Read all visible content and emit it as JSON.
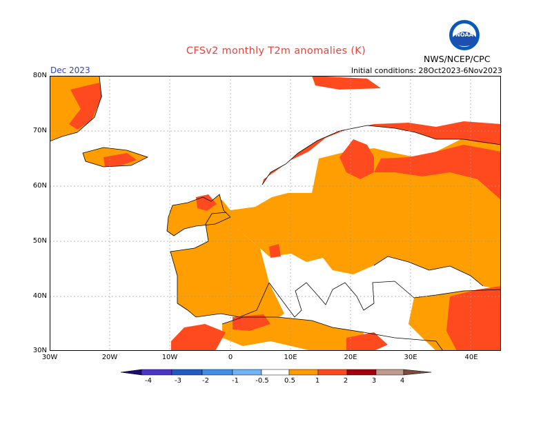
{
  "header": {
    "title": "CFSv2 monthly T2m anomalies (K)",
    "agency": "NWS/NCEP/CPC",
    "month": "Dec 2023",
    "initial_conditions": "Initial conditions: 28Oct2023-6Nov2023",
    "logo_icon": "noaa-logo"
  },
  "map": {
    "lon_range": [
      -30,
      45
    ],
    "lat_range": [
      30,
      80
    ],
    "lat_labels": [
      "80N",
      "70N",
      "60N",
      "50N",
      "40N",
      "30N"
    ],
    "lon_labels": [
      "30W",
      "20W",
      "10W",
      "0",
      "10E",
      "20E",
      "30E",
      "40E"
    ],
    "grid": "dotted"
  },
  "legend": {
    "labels": [
      "-4",
      "-3",
      "-2",
      "-1",
      "-0.5",
      "0.5",
      "1",
      "2",
      "3",
      "4"
    ],
    "colors": [
      "#1a0b75",
      "#4b34c8",
      "#1f5ac6",
      "#3f8fe6",
      "#6fb2f5",
      "#8fd0ff",
      "#ffffff",
      "#ff9900",
      "#ff4a1f",
      "#a3000b",
      "#c09a8c",
      "#7a4c3c"
    ]
  }
}
